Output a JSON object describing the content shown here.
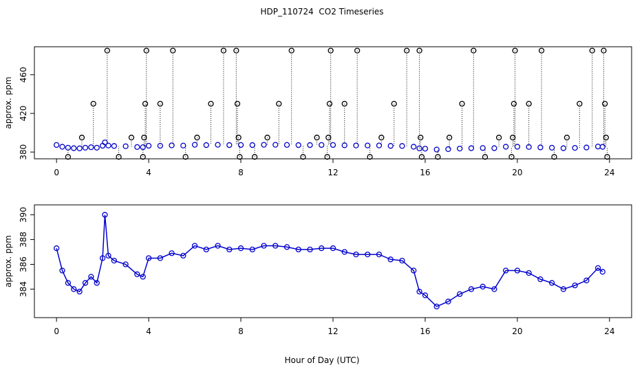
{
  "chart_data": [
    {
      "type": "scatter",
      "title": "HDP_110724  CO2 Timeseries",
      "ylabel": "approx. ppm",
      "xlim": [
        -0.96,
        24.96
      ],
      "ylim": [
        373,
        489
      ],
      "xticks": [
        0,
        4,
        8,
        12,
        16,
        20,
        24
      ],
      "yticks": [
        380,
        420,
        460
      ],
      "series": [
        {
          "color": "#0000cc",
          "x": [
            0,
            0.25,
            0.5,
            0.75,
            1,
            1.25,
            1.5,
            1.75,
            2,
            2.1,
            2.25,
            2.5,
            3,
            3.5,
            3.75,
            4,
            4.5,
            5,
            5.5,
            6,
            6.5,
            7,
            7.5,
            8,
            8.5,
            9,
            9.5,
            10,
            10.5,
            11,
            11.5,
            12,
            12.5,
            13,
            13.5,
            14,
            14.5,
            15,
            15.5,
            15.75,
            16,
            16.5,
            17,
            17.5,
            18,
            18.5,
            19,
            19.5,
            20,
            20.5,
            21,
            21.5,
            22,
            22.5,
            23,
            23.5,
            23.7
          ],
          "values": [
            387.3,
            385.5,
            384.5,
            384,
            383.8,
            384.5,
            385,
            384.5,
            386.5,
            390,
            386.7,
            386.3,
            386,
            385.2,
            385,
            386.5,
            386.5,
            386.9,
            386.7,
            387.5,
            387.2,
            387.5,
            387.2,
            387.3,
            387.2,
            387.5,
            387.5,
            387.4,
            387.2,
            387.2,
            387.3,
            387.3,
            387,
            386.8,
            386.8,
            386.8,
            386.4,
            386.3,
            385.5,
            383.8,
            383.5,
            382.6,
            383,
            383.6,
            384,
            384.2,
            384,
            385.5,
            385.5,
            385.3,
            384.8,
            384.5,
            384,
            384.3,
            384.7,
            385.7,
            385.4
          ]
        },
        {
          "color": "#000000",
          "stems": true,
          "x": [
            0.5,
            1.1,
            1.6,
            2.2,
            2.7,
            3.25,
            3.75,
            3.8,
            3.85,
            3.9,
            4.5,
            5.05,
            5.6,
            6.1,
            6.7,
            7.25,
            7.8,
            7.85,
            7.9,
            7.95,
            8.6,
            9.15,
            9.65,
            10.2,
            10.7,
            11.3,
            11.75,
            11.8,
            11.85,
            11.9,
            12.5,
            13.05,
            13.6,
            14.1,
            14.65,
            15.2,
            15.75,
            15.8,
            15.85,
            16.55,
            17.05,
            17.6,
            18.1,
            18.6,
            19.2,
            19.75,
            19.8,
            19.85,
            19.9,
            20.5,
            21.05,
            21.6,
            22.15,
            22.7,
            23.25,
            23.75,
            23.8,
            23.85,
            23.9
          ],
          "values": [
            375,
            395,
            430,
            485,
            375,
            395,
            375,
            395,
            430,
            485,
            430,
            485,
            375,
            395,
            430,
            485,
            485,
            430,
            395,
            375,
            375,
            395,
            430,
            485,
            375,
            395,
            375,
            395,
            430,
            485,
            430,
            485,
            375,
            395,
            430,
            485,
            485,
            395,
            375,
            375,
            395,
            430,
            485,
            375,
            395,
            375,
            395,
            430,
            485,
            430,
            485,
            375,
            395,
            430,
            485,
            485,
            430,
            395,
            375
          ]
        }
      ]
    },
    {
      "type": "scatter",
      "xlabel": "Hour of Day (UTC)",
      "ylabel": "approx. ppm",
      "xlim": [
        -0.96,
        24.96
      ],
      "ylim": [
        381.7,
        390.8
      ],
      "xticks": [
        0,
        4,
        8,
        12,
        16,
        20,
        24
      ],
      "yticks": [
        384,
        386,
        388,
        390
      ],
      "series": [
        {
          "color": "#0000cc",
          "line": true,
          "x": [
            0,
            0.25,
            0.5,
            0.75,
            1,
            1.25,
            1.5,
            1.75,
            2,
            2.1,
            2.25,
            2.5,
            3,
            3.5,
            3.75,
            4,
            4.5,
            5,
            5.5,
            6,
            6.5,
            7,
            7.5,
            8,
            8.5,
            9,
            9.5,
            10,
            10.5,
            11,
            11.5,
            12,
            12.5,
            13,
            13.5,
            14,
            14.5,
            15,
            15.5,
            15.75,
            16,
            16.5,
            17,
            17.5,
            18,
            18.5,
            19,
            19.5,
            20,
            20.5,
            21,
            21.5,
            22,
            22.5,
            23,
            23.5,
            23.7
          ],
          "values": [
            387.3,
            385.5,
            384.5,
            384,
            383.8,
            384.5,
            385,
            384.5,
            386.5,
            390,
            386.7,
            386.3,
            386,
            385.2,
            385,
            386.5,
            386.5,
            386.9,
            386.7,
            387.5,
            387.2,
            387.5,
            387.2,
            387.3,
            387.2,
            387.5,
            387.5,
            387.4,
            387.2,
            387.2,
            387.3,
            387.3,
            387,
            386.8,
            386.8,
            386.8,
            386.4,
            386.3,
            385.5,
            383.8,
            383.5,
            382.6,
            383,
            383.6,
            384,
            384.2,
            384,
            385.5,
            385.5,
            385.3,
            384.8,
            384.5,
            384,
            384.3,
            384.7,
            385.7,
            385.4
          ]
        }
      ]
    }
  ]
}
